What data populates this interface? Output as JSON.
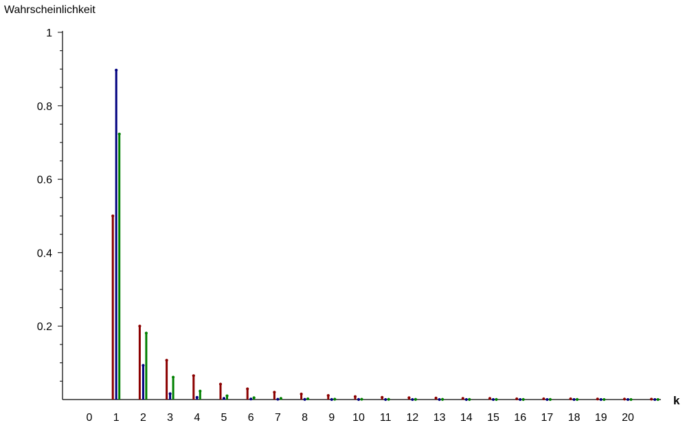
{
  "chart_data": {
    "type": "bar",
    "title": "",
    "ylabel": "Wahrscheinlichkeit",
    "xlabel": "k",
    "x": [
      0,
      1,
      2,
      3,
      4,
      5,
      6,
      7,
      8,
      9,
      10,
      11,
      12,
      13,
      14,
      15,
      16,
      17,
      18,
      19,
      20,
      21
    ],
    "x_tick_labels": [
      "0",
      "1",
      "2",
      "3",
      "4",
      "5",
      "6",
      "7",
      "8",
      "9",
      "10",
      "11",
      "12",
      "13",
      "14",
      "15",
      "16",
      "17",
      "18",
      "19",
      "20"
    ],
    "y_tick_labels": [
      "0.2",
      "0.4",
      "0.6",
      "0.8",
      "1"
    ],
    "y_ticks": [
      0.2,
      0.4,
      0.6,
      0.8,
      1.0
    ],
    "ylim": [
      0,
      1
    ],
    "xlim": [
      -1,
      21
    ],
    "grid": false,
    "series": [
      {
        "color": "#8b0000",
        "values": [
          0,
          0.5,
          0.2,
          0.107,
          0.065,
          0.042,
          0.029,
          0.02,
          0.015,
          0.011,
          0.008,
          0.006,
          0.005,
          0.004,
          0.003,
          0.003,
          0.002,
          0.002,
          0.002,
          0.0015,
          0.0013,
          0.0011
        ]
      },
      {
        "color": "#00007f",
        "values": [
          0,
          0.897,
          0.093,
          0.016,
          0.006,
          0.003,
          0.0015,
          0.0008,
          0.0005,
          0.0003,
          0.0002,
          0.0001,
          0.0001,
          0.0001,
          0.0001,
          0.0001,
          0.0001,
          0.0001,
          0.0001,
          0.0001,
          0.0001,
          0.0001
        ]
      },
      {
        "color": "#008000",
        "values": [
          0,
          0.723,
          0.181,
          0.061,
          0.023,
          0.01,
          0.005,
          0.003,
          0.002,
          0.001,
          0.0008,
          0.0006,
          0.0005,
          0.0004,
          0.0003,
          0.0003,
          0.0002,
          0.0002,
          0.0002,
          0.0001,
          0.0001,
          0.0001
        ]
      }
    ]
  }
}
